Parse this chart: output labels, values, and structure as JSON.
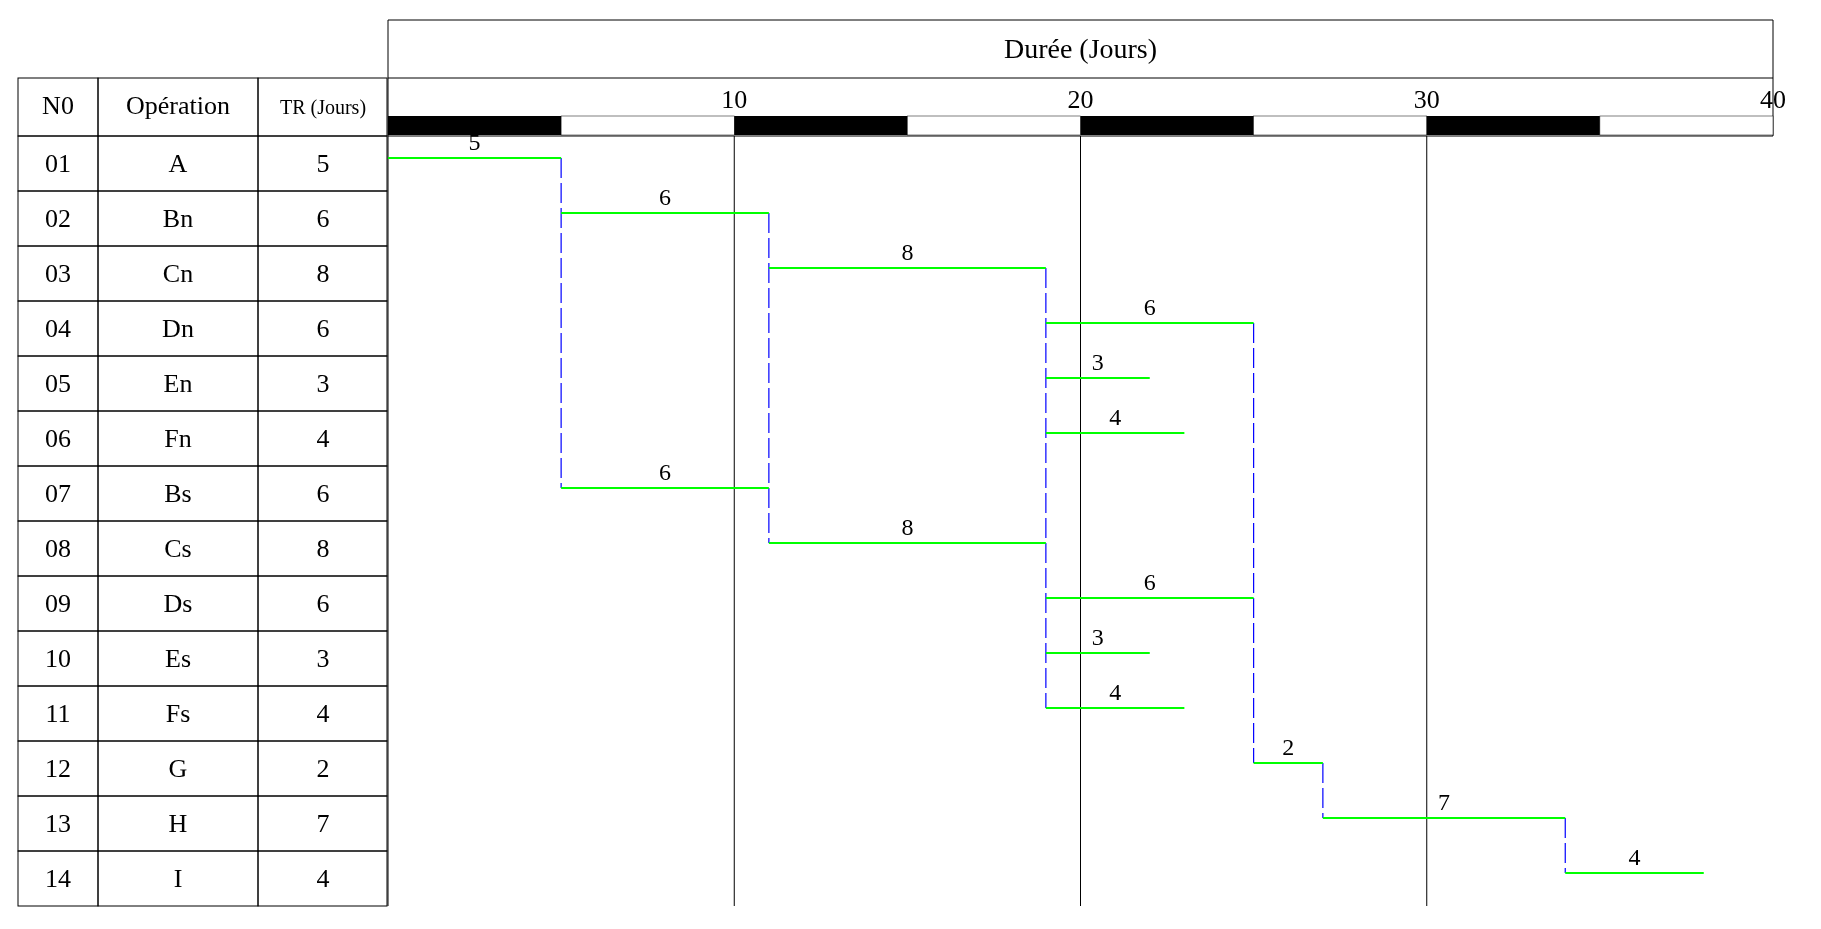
{
  "chart_data": {
    "type": "bar",
    "orientation": "horizontal",
    "xlabel": "Durée (Jours)",
    "ylabel": "Opération",
    "categories": [
      "A",
      "Bn",
      "Cn",
      "Dn",
      "En",
      "Fn",
      "Bs",
      "Cs",
      "Ds",
      "Es",
      "Fs",
      "G",
      "H",
      "I"
    ],
    "values": [
      5,
      6,
      8,
      6,
      3,
      4,
      6,
      8,
      6,
      3,
      4,
      2,
      7,
      4
    ],
    "base": [
      0,
      5,
      11,
      19,
      19,
      19,
      5,
      11,
      19,
      19,
      19,
      25,
      27,
      34
    ],
    "color": "#00ff00",
    "value_labels": [
      "5",
      "6",
      "8",
      "6",
      "3",
      "4",
      "6",
      "8",
      "6",
      "3",
      "4",
      "2",
      "7",
      "4"
    ],
    "ref_lines": [
      {
        "axis": "x",
        "value": 5,
        "color": "#0000ff",
        "line_style": "dashed"
      },
      {
        "axis": "x",
        "value": 11,
        "color": "#0000ff",
        "line_style": "dashed"
      },
      {
        "axis": "x",
        "value": 19,
        "color": "#0000ff",
        "line_style": "dashed"
      },
      {
        "axis": "x",
        "value": 25,
        "color": "#0000ff",
        "line_style": "dashed"
      }
    ],
    "xlim": [
      0,
      40
    ],
    "xticks": [
      10,
      20,
      30,
      40
    ],
    "grid": "x",
    "annotations": [
      "N0",
      "TR (Jours)",
      "01",
      "02",
      "03",
      "04",
      "05",
      "06",
      "07",
      "08",
      "09",
      "10",
      "11",
      "12",
      "13",
      "14",
      "5",
      "6",
      "8",
      "6",
      "3",
      "4",
      "6",
      "8",
      "6",
      "3",
      "4",
      "2",
      "7",
      "4"
    ]
  }
}
